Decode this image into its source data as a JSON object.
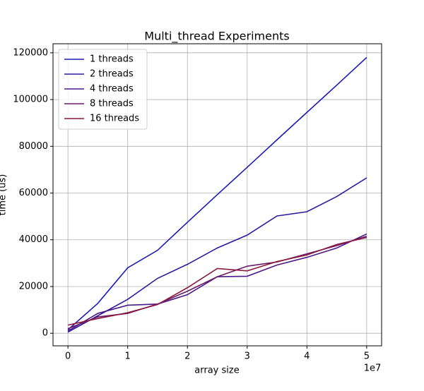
{
  "chart_data": {
    "type": "line",
    "title": "Multi_thread Experiments",
    "x_label": "array size",
    "y_label": "time (us)",
    "x": [
      0,
      5000000,
      10000000,
      15000000,
      20000000,
      25000000,
      30000000,
      35000000,
      40000000,
      45000000,
      50000000
    ],
    "x_offset_label": "1e7",
    "series": [
      {
        "name": "1 threads",
        "color": "#1a1ab8",
        "values": [
          1500,
          12800,
          28000,
          35500,
          47500,
          59300,
          71000,
          82800,
          94500,
          106200,
          118000
        ]
      },
      {
        "name": "2 threads",
        "color": "#2e1a9e",
        "values": [
          500,
          7500,
          14500,
          23500,
          29500,
          36500,
          42000,
          50200,
          52000,
          58500,
          66500
        ]
      },
      {
        "name": "4 threads",
        "color": "#4c1a88",
        "values": [
          1000,
          8500,
          12000,
          12500,
          16500,
          24200,
          24400,
          29200,
          32500,
          36500,
          42500
        ]
      },
      {
        "name": "8 threads",
        "color": "#6a1a68",
        "values": [
          2000,
          7000,
          8500,
          12500,
          18000,
          24200,
          28700,
          30500,
          34000,
          37500,
          41500
        ]
      },
      {
        "name": "16 threads",
        "color": "#8a1a3c",
        "values": [
          3500,
          6300,
          8800,
          12300,
          19500,
          27700,
          26700,
          30700,
          33500,
          38000,
          41000
        ]
      }
    ],
    "xlim": [
      -2500000,
      52500000
    ],
    "xticks": [
      {
        "value": 0,
        "label": "0"
      },
      {
        "value": 10000000,
        "label": "1"
      },
      {
        "value": 20000000,
        "label": "2"
      },
      {
        "value": 30000000,
        "label": "3"
      },
      {
        "value": 40000000,
        "label": "4"
      },
      {
        "value": 50000000,
        "label": "5"
      }
    ],
    "ylim": [
      -5375,
      123875
    ],
    "yticks": [
      0,
      20000,
      40000,
      60000,
      80000,
      100000,
      120000
    ],
    "grid": true,
    "legend": "upper left"
  }
}
